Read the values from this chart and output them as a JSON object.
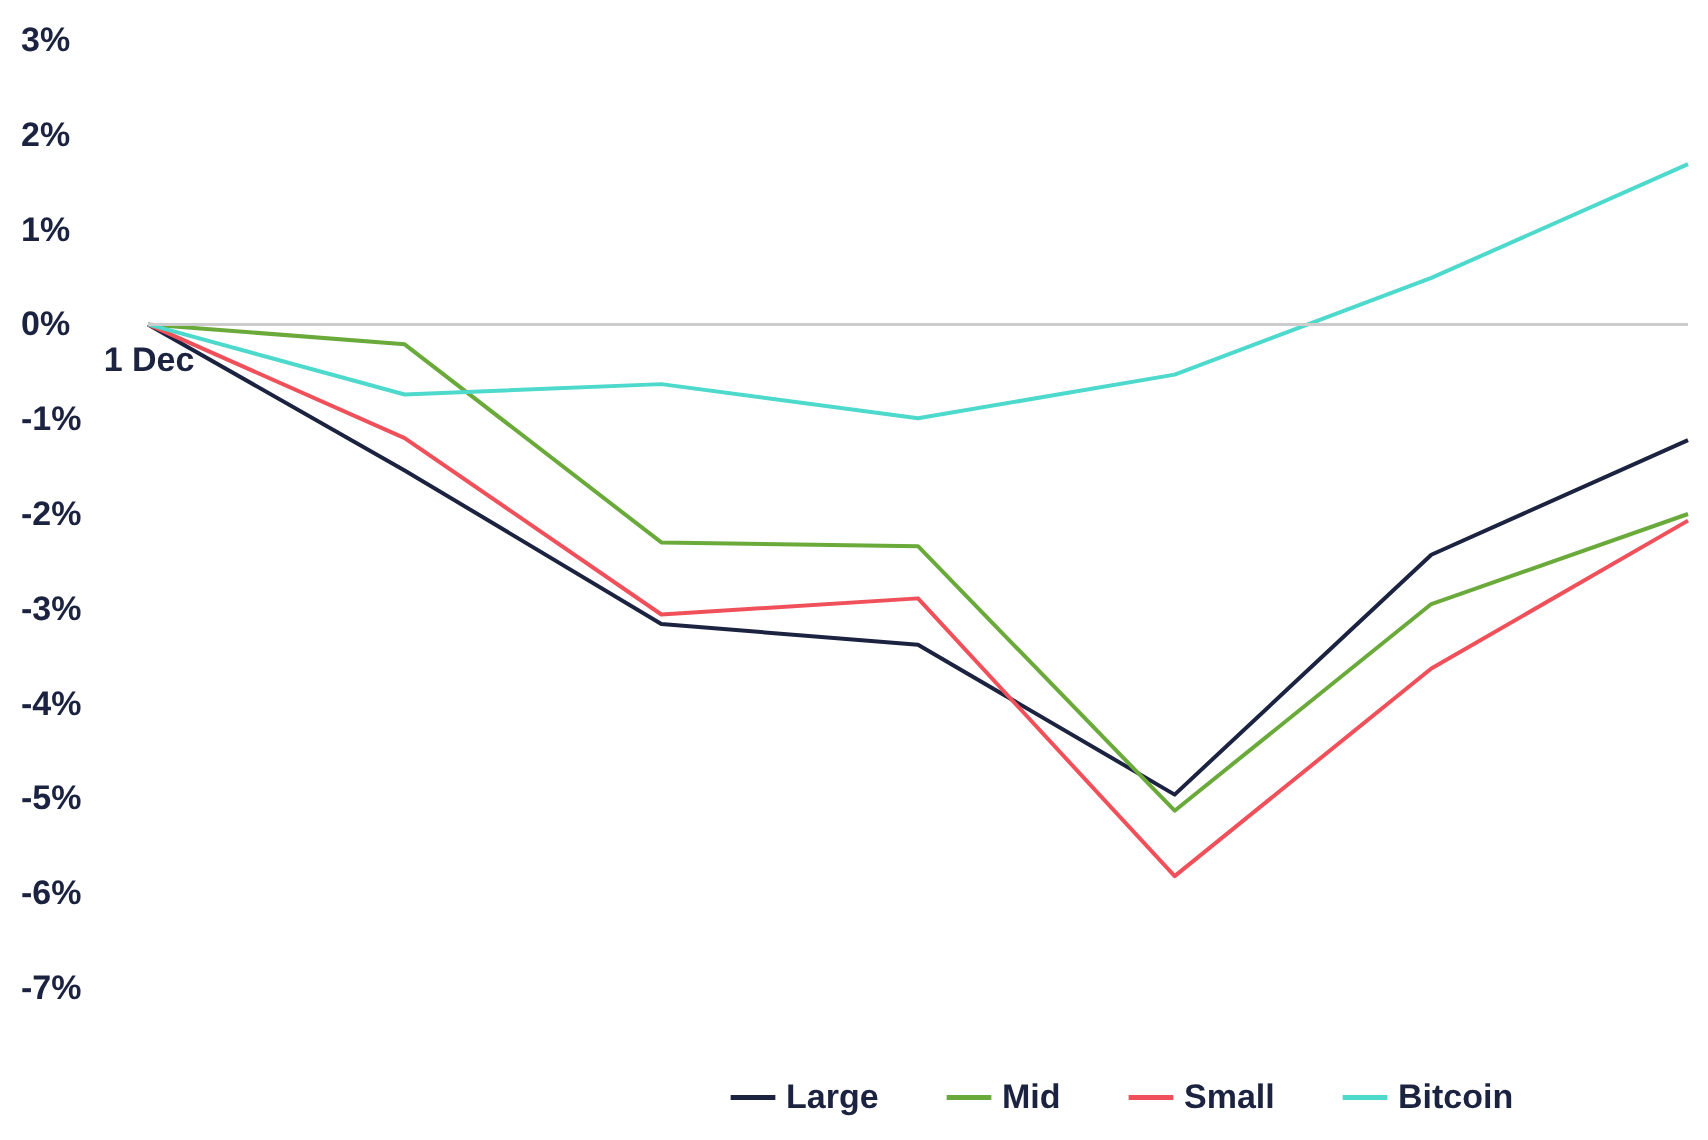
{
  "chart_data": {
    "type": "line",
    "categories": [
      "1 Dec",
      null,
      null,
      null,
      null,
      null,
      null
    ],
    "series": [
      {
        "name": "Large",
        "color": "#1b2340",
        "values": [
          0,
          -1.54,
          -3.16,
          -3.38,
          -4.96,
          -2.43,
          -1.22
        ]
      },
      {
        "name": "Mid",
        "color": "#6aaa3a",
        "values": [
          0,
          -0.21,
          -2.3,
          -2.34,
          -5.13,
          -2.95,
          -2.0
        ]
      },
      {
        "name": "Small",
        "color": "#f0505a",
        "values": [
          0,
          -1.2,
          -3.06,
          -2.89,
          -5.82,
          -3.63,
          -2.07
        ]
      },
      {
        "name": "Bitcoin",
        "color": "#4dd9cc",
        "values": [
          0,
          -0.74,
          -0.63,
          -0.99,
          -0.53,
          0.49,
          1.69
        ]
      }
    ],
    "ylim": [
      -7,
      3
    ],
    "yticks": [
      {
        "value": 3,
        "label": "3%"
      },
      {
        "value": 2,
        "label": "2%"
      },
      {
        "value": 1,
        "label": "1%"
      },
      {
        "value": 0,
        "label": "0%"
      },
      {
        "value": -1,
        "label": "-1%"
      },
      {
        "value": -2,
        "label": "-2%"
      },
      {
        "value": -3,
        "label": "-3%"
      },
      {
        "value": -4,
        "label": "-4%"
      },
      {
        "value": -5,
        "label": "-5%"
      },
      {
        "value": -6,
        "label": "-6%"
      },
      {
        "value": -7,
        "label": "-7%"
      }
    ],
    "ref_lines": [
      {
        "axis": "y",
        "value": 0,
        "color": "#cccccc"
      }
    ],
    "grid": false,
    "legend": "bottom right",
    "marker": "none",
    "line_style": "solid"
  }
}
